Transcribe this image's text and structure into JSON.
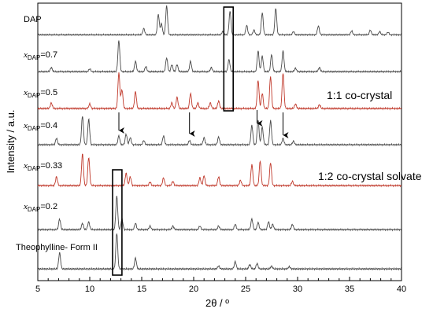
{
  "chart_data": {
    "type": "line",
    "xlabel": "2θ / º",
    "ylabel": "Intensity / a.u.",
    "xlim": [
      5,
      40
    ],
    "xticks": [
      5,
      10,
      15,
      20,
      25,
      30,
      35,
      40
    ],
    "series": [
      {
        "name": "DAP",
        "label_main": "DAP",
        "label_sub": "",
        "label_val": "",
        "color": "#4a4a4a",
        "peaks": [
          [
            15.2,
            0.2
          ],
          [
            16.6,
            0.65
          ],
          [
            16.9,
            0.35
          ],
          [
            17.4,
            0.92
          ],
          [
            22.8,
            0.1
          ],
          [
            23.5,
            0.75
          ],
          [
            25.1,
            0.3
          ],
          [
            25.8,
            0.15
          ],
          [
            26.6,
            0.7
          ],
          [
            27.9,
            0.85
          ],
          [
            29.6,
            0.1
          ],
          [
            32.0,
            0.28
          ],
          [
            35.2,
            0.12
          ],
          [
            37.0,
            0.15
          ],
          [
            37.9,
            0.1
          ],
          [
            38.7,
            0.08
          ]
        ]
      },
      {
        "name": "x_DAP = 0.7",
        "label_main": "x",
        "label_sub": "DAP",
        "label_val": "=0.7",
        "color": "#4a4a4a",
        "peaks": [
          [
            6.3,
            0.12
          ],
          [
            10.0,
            0.08
          ],
          [
            12.8,
            0.9
          ],
          [
            14.4,
            0.3
          ],
          [
            15.4,
            0.15
          ],
          [
            17.4,
            0.4
          ],
          [
            17.9,
            0.2
          ],
          [
            18.4,
            0.2
          ],
          [
            19.7,
            0.3
          ],
          [
            21.7,
            0.12
          ],
          [
            23.4,
            0.35
          ],
          [
            26.2,
            0.6
          ],
          [
            26.6,
            0.45
          ],
          [
            27.5,
            0.5
          ],
          [
            28.6,
            0.6
          ],
          [
            29.8,
            0.1
          ],
          [
            32.1,
            0.12
          ]
        ]
      },
      {
        "name": "x_DAP = 0.5",
        "label_main": "x",
        "label_sub": "DAP",
        "label_val": "=0.5",
        "color": "#c0392b",
        "peaks": [
          [
            6.3,
            0.15
          ],
          [
            10.0,
            0.12
          ],
          [
            12.8,
            0.95
          ],
          [
            13.1,
            0.5
          ],
          [
            14.4,
            0.45
          ],
          [
            17.9,
            0.15
          ],
          [
            18.4,
            0.3
          ],
          [
            19.7,
            0.4
          ],
          [
            20.4,
            0.15
          ],
          [
            21.6,
            0.15
          ],
          [
            22.4,
            0.2
          ],
          [
            26.2,
            0.75
          ],
          [
            26.6,
            0.4
          ],
          [
            27.4,
            0.85
          ],
          [
            28.6,
            0.95
          ],
          [
            29.8,
            0.12
          ],
          [
            32.1,
            0.1
          ]
        ]
      },
      {
        "name": "x_DAP = 0.4",
        "label_main": "x",
        "label_sub": "DAP",
        "label_val": "=0.4",
        "color": "#4a4a4a",
        "peaks": [
          [
            6.8,
            0.18
          ],
          [
            9.3,
            0.82
          ],
          [
            9.9,
            0.72
          ],
          [
            12.8,
            0.25
          ],
          [
            13.5,
            0.3
          ],
          [
            13.9,
            0.2
          ],
          [
            15.2,
            0.12
          ],
          [
            17.1,
            0.25
          ],
          [
            19.6,
            0.12
          ],
          [
            21.0,
            0.2
          ],
          [
            22.4,
            0.22
          ],
          [
            25.6,
            0.55
          ],
          [
            26.2,
            0.7
          ],
          [
            26.6,
            0.5
          ],
          [
            27.4,
            0.68
          ],
          [
            28.6,
            0.18
          ],
          [
            29.6,
            0.1
          ]
        ]
      },
      {
        "name": "x_DAP = 0.33",
        "label_main": "x",
        "label_sub": "DAP",
        "label_val": "=0.33",
        "color": "#c0392b",
        "peaks": [
          [
            6.8,
            0.25
          ],
          [
            9.3,
            0.9
          ],
          [
            9.9,
            0.8
          ],
          [
            13.5,
            0.35
          ],
          [
            13.9,
            0.25
          ],
          [
            15.8,
            0.1
          ],
          [
            17.1,
            0.22
          ],
          [
            18.0,
            0.12
          ],
          [
            20.6,
            0.22
          ],
          [
            21.0,
            0.28
          ],
          [
            22.4,
            0.25
          ],
          [
            24.5,
            0.15
          ],
          [
            25.6,
            0.6
          ],
          [
            26.4,
            0.7
          ],
          [
            27.4,
            0.65
          ],
          [
            29.5,
            0.12
          ]
        ]
      },
      {
        "name": "x_DAP = 0.2",
        "label_main": "x",
        "label_sub": "DAP",
        "label_val": "=0.2",
        "color": "#4a4a4a",
        "peaks": [
          [
            7.1,
            0.3
          ],
          [
            9.3,
            0.18
          ],
          [
            9.9,
            0.22
          ],
          [
            12.6,
            0.95
          ],
          [
            13.1,
            0.3
          ],
          [
            14.4,
            0.18
          ],
          [
            15.8,
            0.1
          ],
          [
            18.0,
            0.1
          ],
          [
            20.6,
            0.1
          ],
          [
            22.4,
            0.1
          ],
          [
            24.0,
            0.15
          ],
          [
            25.6,
            0.3
          ],
          [
            26.2,
            0.2
          ],
          [
            27.2,
            0.22
          ],
          [
            27.6,
            0.15
          ],
          [
            29.5,
            0.15
          ]
        ]
      },
      {
        "name": "Theophylline- Form II",
        "label_main": "Theophylline- Form II",
        "label_sub": "",
        "label_val": "",
        "color": "#4a4a4a",
        "peaks": [
          [
            7.1,
            0.45
          ],
          [
            12.6,
            1.0
          ],
          [
            14.4,
            0.3
          ],
          [
            22.4,
            0.08
          ],
          [
            24.0,
            0.2
          ],
          [
            25.4,
            0.12
          ],
          [
            26.1,
            0.15
          ],
          [
            27.5,
            0.08
          ],
          [
            29.2,
            0.06
          ]
        ]
      }
    ],
    "annotations": [
      {
        "text": "1:1 co-crystal"
      },
      {
        "text": "1:2 co-crystal solvate"
      }
    ],
    "arrows_x": [
      12.8,
      19.6,
      26.1,
      28.6
    ],
    "highlight_boxes_x": [
      [
        22.9,
        23.8
      ],
      [
        12.2,
        13.1
      ]
    ]
  }
}
